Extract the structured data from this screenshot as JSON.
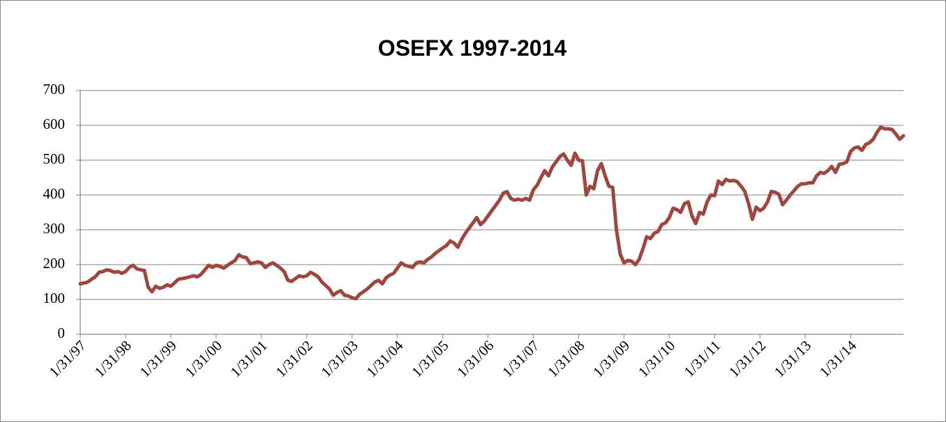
{
  "chart_data": {
    "type": "line",
    "title": "OSEFX 1997-2014",
    "categories": [
      "1/31/97",
      null,
      null,
      null,
      null,
      null,
      null,
      null,
      null,
      null,
      null,
      null,
      "1/31/98",
      null,
      null,
      null,
      null,
      null,
      null,
      null,
      null,
      null,
      null,
      null,
      "1/31/99",
      null,
      null,
      null,
      null,
      null,
      null,
      null,
      null,
      null,
      null,
      null,
      "1/31/00",
      null,
      null,
      null,
      null,
      null,
      null,
      null,
      null,
      null,
      null,
      null,
      "1/31/01",
      null,
      null,
      null,
      null,
      null,
      null,
      null,
      null,
      null,
      null,
      null,
      "1/31/02",
      null,
      null,
      null,
      null,
      null,
      null,
      null,
      null,
      null,
      null,
      null,
      "1/31/03",
      null,
      null,
      null,
      null,
      null,
      null,
      null,
      null,
      null,
      null,
      null,
      "1/31/04",
      null,
      null,
      null,
      null,
      null,
      null,
      null,
      null,
      null,
      null,
      null,
      "1/31/05",
      null,
      null,
      null,
      null,
      null,
      null,
      null,
      null,
      null,
      null,
      null,
      "1/31/06",
      null,
      null,
      null,
      null,
      null,
      null,
      null,
      null,
      null,
      null,
      null,
      "1/31/07",
      null,
      null,
      null,
      null,
      null,
      null,
      null,
      null,
      null,
      null,
      null,
      "1/31/08",
      null,
      null,
      null,
      null,
      null,
      null,
      null,
      null,
      null,
      null,
      null,
      "1/31/09",
      null,
      null,
      null,
      null,
      null,
      null,
      null,
      null,
      null,
      null,
      null,
      "1/31/10",
      null,
      null,
      null,
      null,
      null,
      null,
      null,
      null,
      null,
      null,
      null,
      "1/31/11",
      null,
      null,
      null,
      null,
      null,
      null,
      null,
      null,
      null,
      null,
      null,
      "1/31/12",
      null,
      null,
      null,
      null,
      null,
      null,
      null,
      null,
      null,
      null,
      null,
      "1/31/13",
      null,
      null,
      null,
      null,
      null,
      null,
      null,
      null,
      null,
      null,
      null,
      "1/31/14",
      null,
      null,
      null,
      null,
      null,
      null,
      null,
      null,
      null,
      null,
      null,
      null,
      null,
      null
    ],
    "values": [
      145,
      147,
      150,
      158,
      165,
      178,
      180,
      185,
      183,
      178,
      180,
      175,
      180,
      192,
      198,
      188,
      185,
      183,
      135,
      122,
      138,
      132,
      135,
      142,
      138,
      148,
      158,
      160,
      162,
      165,
      168,
      165,
      172,
      185,
      198,
      192,
      198,
      195,
      190,
      198,
      205,
      212,
      228,
      222,
      220,
      203,
      205,
      208,
      205,
      192,
      200,
      205,
      198,
      190,
      180,
      155,
      152,
      160,
      168,
      165,
      168,
      178,
      172,
      165,
      150,
      140,
      130,
      112,
      120,
      125,
      112,
      110,
      105,
      102,
      115,
      122,
      130,
      140,
      150,
      155,
      145,
      162,
      170,
      175,
      190,
      205,
      198,
      195,
      192,
      205,
      208,
      205,
      215,
      222,
      232,
      240,
      248,
      255,
      268,
      262,
      250,
      272,
      290,
      305,
      320,
      335,
      315,
      325,
      340,
      355,
      370,
      385,
      405,
      410,
      390,
      385,
      388,
      385,
      390,
      385,
      415,
      428,
      450,
      470,
      455,
      480,
      495,
      510,
      518,
      500,
      485,
      520,
      500,
      498,
      400,
      425,
      418,
      470,
      490,
      455,
      425,
      422,
      300,
      230,
      205,
      212,
      210,
      200,
      215,
      245,
      280,
      275,
      290,
      295,
      315,
      320,
      335,
      362,
      358,
      350,
      375,
      380,
      340,
      318,
      350,
      345,
      380,
      400,
      398,
      440,
      430,
      445,
      440,
      442,
      438,
      425,
      410,
      375,
      330,
      365,
      355,
      362,
      380,
      410,
      408,
      402,
      372,
      385,
      400,
      412,
      425,
      432,
      432,
      435,
      435,
      455,
      465,
      462,
      470,
      482,
      465,
      488,
      490,
      495,
      525,
      535,
      538,
      528,
      545,
      550,
      560,
      580,
      595,
      590,
      590,
      588,
      575,
      560,
      570
    ],
    "color": "#a0463f",
    "ylim": [
      0,
      700
    ],
    "yticks": [
      0,
      100,
      200,
      300,
      400,
      500,
      600,
      700
    ],
    "grid": true
  }
}
